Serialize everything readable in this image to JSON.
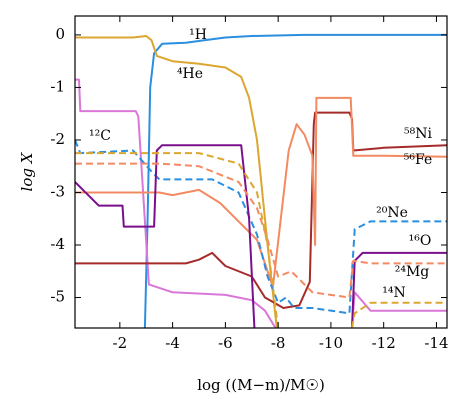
{
  "chart_data": {
    "type": "line",
    "xlabel": "log ((M−m)/M☉)",
    "ylabel": "log X",
    "xlim": [
      -0.3,
      -14.4
    ],
    "ylim": [
      -5.58,
      0.36
    ],
    "xticks": [
      -2,
      -4,
      -6,
      -8,
      -10,
      -12,
      -14
    ],
    "yticks": [
      0,
      -1,
      -2,
      -3,
      -4,
      -5
    ],
    "series": [
      {
        "name": "¹H",
        "color": "#2b8fe0",
        "dashed": false,
        "x": [
          -2.95,
          -3.05,
          -3.15,
          -3.3,
          -3.6,
          -4.5,
          -5.2,
          -6,
          -7,
          -9,
          -11,
          -14.4
        ],
        "values": [
          -5.58,
          -3.5,
          -1,
          -0.35,
          -0.17,
          -0.15,
          -0.1,
          -0.05,
          -0.02,
          0,
          0,
          0
        ]
      },
      {
        "name": "⁴He",
        "color": "#dca631",
        "dashed": false,
        "x": [
          -0.3,
          -2.5,
          -3.0,
          -3.2,
          -3.4,
          -4,
          -5,
          -6,
          -6.6,
          -6.9,
          -7.2,
          -7.6,
          -7.95
        ],
        "values": [
          -0.05,
          -0.05,
          -0.02,
          -0.1,
          -0.4,
          -0.5,
          -0.55,
          -0.62,
          -0.8,
          -1.2,
          -2,
          -4,
          -5.58
        ]
      },
      {
        "name": "¹²C",
        "color": "#d977d9",
        "dashed": false,
        "x": [
          -0.3,
          -0.45,
          -0.5,
          -2.6,
          -2.7,
          -3.1,
          -4,
          -6,
          -7,
          -7.5,
          -7.9,
          null,
          -10.8,
          -10.9,
          -11.5,
          -14.4
        ],
        "values": [
          -0.85,
          -0.85,
          -1.45,
          -1.45,
          -1.55,
          -4.75,
          -4.9,
          -4.95,
          -5.05,
          -5.25,
          -5.58,
          null,
          -5.58,
          -4.9,
          -5.25,
          -5.25
        ]
      },
      {
        "name": "⁵⁸Ni",
        "color": "#a52a2a",
        "dashed": false,
        "x": [
          -0.3,
          -4.5,
          -5,
          -5.5,
          -6,
          -7,
          -7.5,
          -8.2,
          -8.8,
          -9.2,
          -9.35,
          -9.4,
          -10.7,
          -10.8,
          -10.85,
          -12,
          -14.4
        ],
        "values": [
          -4.35,
          -4.35,
          -4.28,
          -4.15,
          -4.4,
          -4.6,
          -5.0,
          -5.2,
          -5.15,
          -4.7,
          -1.7,
          -1.48,
          -1.48,
          -1.6,
          -2.2,
          -2.15,
          -2.1
        ]
      },
      {
        "name": "⁵⁶Fe",
        "color": "#f38a62",
        "dashed": false,
        "x": [
          -0.3,
          -3.5,
          -4,
          -5,
          -5.8,
          -6.5,
          -7.2,
          -7.8,
          -8.1,
          -8.4,
          -8.7,
          -9.0,
          -9.3,
          -9.4,
          -9.45,
          -10.75,
          -10.85,
          -12,
          -14.4
        ],
        "values": [
          -3.0,
          -3.0,
          -3.05,
          -2.95,
          -3.2,
          -3.55,
          -3.9,
          -4.8,
          -3.5,
          -2.2,
          -1.7,
          -1.9,
          -2.3,
          -4.0,
          -1.2,
          -1.2,
          -2.3,
          -2.3,
          -2.32
        ]
      },
      {
        "name": "²⁰Ne",
        "color": "#2b8fe0",
        "dashed": true,
        "x": [
          -0.3,
          -0.5,
          -2.5,
          -3.2,
          -3.5,
          -5.5,
          -6.5,
          -7.2,
          -7.6,
          -8.0,
          -8.3,
          -8.6,
          -9.3,
          -10.7,
          -10.9,
          -11.5,
          -14.4
        ],
        "values": [
          -2.0,
          -2.25,
          -2.2,
          -2.6,
          -2.75,
          -2.75,
          -3.0,
          -3.8,
          -4.6,
          -5.1,
          -5.0,
          -5.2,
          -5.2,
          -5.3,
          -3.7,
          -3.55,
          -3.55
        ]
      },
      {
        "name": "¹⁶O",
        "color": "#7a0f8c",
        "dashed": false,
        "x": [
          -0.3,
          -1.2,
          -2.1,
          -2.15,
          -3.3,
          -3.4,
          -3.6,
          -6.6,
          -6.9,
          -7.1,
          null,
          -10.8,
          -10.9,
          -11.2,
          -14.4
        ],
        "values": [
          -2.8,
          -3.25,
          -3.25,
          -3.65,
          -3.65,
          -2.2,
          -2.1,
          -2.1,
          -3.5,
          -5.58,
          null,
          -5.58,
          -4.3,
          -4.15,
          -4.15
        ]
      },
      {
        "name": "²⁴Mg",
        "color": "#f38a62",
        "dashed": true,
        "x": [
          -0.3,
          -3.5,
          -5,
          -6.5,
          -7.2,
          -7.6,
          -8,
          -8.5,
          -9.3,
          -10.7,
          -10.85,
          -11.5,
          -14.4
        ],
        "values": [
          -2.45,
          -2.45,
          -2.5,
          -2.8,
          -3.3,
          -3.9,
          -4.6,
          -4.5,
          -4.9,
          -5.0,
          -4.3,
          -4.35,
          -4.35
        ]
      },
      {
        "name": "¹⁴N",
        "color": "#dca631",
        "dashed": true,
        "x": [
          -0.3,
          -3.5,
          -5,
          -6.5,
          -7.2,
          -7.6,
          -8.0,
          null,
          -10.8,
          -10.9,
          -11.5,
          -14.4
        ],
        "values": [
          -2.25,
          -2.25,
          -2.25,
          -2.45,
          -3.0,
          -4.0,
          -5.58,
          null,
          -5.58,
          -5.3,
          -5.1,
          -5.1
        ]
      }
    ]
  }
}
